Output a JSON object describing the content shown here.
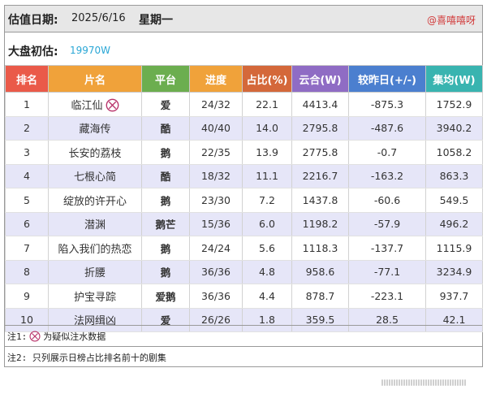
{
  "header": {
    "date_label": "估值日期:",
    "date_value": "2025/6/16",
    "weekday": "星期一",
    "watermark": "@喜嘻嘻呀"
  },
  "market": {
    "label": "大盘初估:",
    "value": "19970W"
  },
  "table": {
    "columns": [
      "排名",
      "片名",
      "平台",
      "进度",
      "占比(%)",
      "云合(W)",
      "较昨日(+/-)",
      "集均(W)"
    ],
    "rows": [
      {
        "rank": "1",
        "title": "临江仙",
        "platform": "爱",
        "progress": "24/32",
        "share": "22.1",
        "yunhe": "4413.4",
        "change": "-875.3",
        "avg": "1752.9",
        "flag": "suspected-fake-data-icon"
      },
      {
        "rank": "2",
        "title": "藏海传",
        "platform": "酷",
        "progress": "40/40",
        "share": "14.0",
        "yunhe": "2795.8",
        "change": "-487.6",
        "avg": "3940.2"
      },
      {
        "rank": "3",
        "title": "长安的荔枝",
        "platform": "鹅",
        "progress": "22/35",
        "share": "13.9",
        "yunhe": "2775.8",
        "change": "-0.7",
        "avg": "1058.2"
      },
      {
        "rank": "4",
        "title": "七根心简",
        "platform": "酷",
        "progress": "18/32",
        "share": "11.1",
        "yunhe": "2216.7",
        "change": "-163.2",
        "avg": "863.3"
      },
      {
        "rank": "5",
        "title": "绽放的许开心",
        "platform": "鹅",
        "progress": "23/30",
        "share": "7.2",
        "yunhe": "1437.8",
        "change": "-60.6",
        "avg": "549.5"
      },
      {
        "rank": "6",
        "title": "潜渊",
        "platform": "鹅芒",
        "progress": "15/36",
        "share": "6.0",
        "yunhe": "1198.2",
        "change": "-57.9",
        "avg": "496.2"
      },
      {
        "rank": "7",
        "title": "陷入我们的热恋",
        "platform": "鹅",
        "progress": "24/24",
        "share": "5.6",
        "yunhe": "1118.3",
        "change": "-137.7",
        "avg": "1115.9"
      },
      {
        "rank": "8",
        "title": "折腰",
        "platform": "鹅",
        "progress": "36/36",
        "share": "4.8",
        "yunhe": "958.6",
        "change": "-77.1",
        "avg": "3234.9"
      },
      {
        "rank": "9",
        "title": "护宝寻踪",
        "platform": "爱鹅",
        "progress": "36/36",
        "share": "4.4",
        "yunhe": "878.7",
        "change": "-223.1",
        "avg": "937.7"
      },
      {
        "rank": "10",
        "title": "法网缉凶",
        "platform": "爱",
        "progress": "26/26",
        "share": "1.8",
        "yunhe": "359.5",
        "change": "28.5",
        "avg": "42.1"
      }
    ]
  },
  "notes": {
    "note1_prefix": "注1:",
    "note1_text": "为疑似注水数据",
    "note2": "注2: 只列展示日榜占比排名前十的剧集"
  },
  "colors": {
    "header_red": "#ea5a49",
    "header_green": "#6cae4f",
    "header_blue": "#4b7fcf",
    "header_orange": "#f0a23a",
    "row_alt": "#e6e6f8",
    "watermark": "#d23c3c",
    "market_value": "#2aa7d6"
  }
}
